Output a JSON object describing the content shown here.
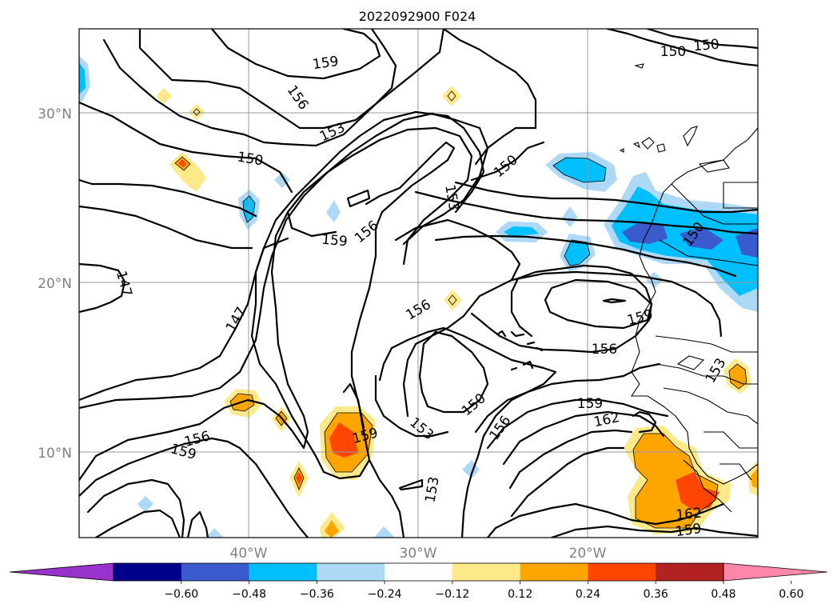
{
  "title": "2022092900 F024",
  "axes": {
    "lat_labels": [
      "30°N",
      "20°N",
      "10°N"
    ],
    "lon_labels": [
      "40°W",
      "30°W",
      "20°W"
    ],
    "gridlines": true
  },
  "colorbar": {
    "ticks": [
      "-0.60",
      "-0.48",
      "-0.36",
      "-0.24",
      "-0.12",
      "0.12",
      "0.24",
      "0.36",
      "0.48",
      "0.60"
    ],
    "colors": [
      "#9932cc",
      "#00008b",
      "#3a5bcd",
      "#00bfff",
      "#add8f6",
      "#ffffff",
      "#fce98a",
      "#ffa500",
      "#ff4500",
      "#b22222",
      "#ff88aa"
    ],
    "extend": "both"
  },
  "contour_labels": [
    "159",
    "156",
    "153",
    "150",
    "150",
    "150",
    "150",
    "153",
    "159",
    "156",
    "150",
    "147",
    "147",
    "156",
    "159",
    "156",
    "150",
    "153",
    "156",
    "159",
    "162",
    "159",
    "156",
    "159",
    "153",
    "162",
    "159",
    "153"
  ]
}
